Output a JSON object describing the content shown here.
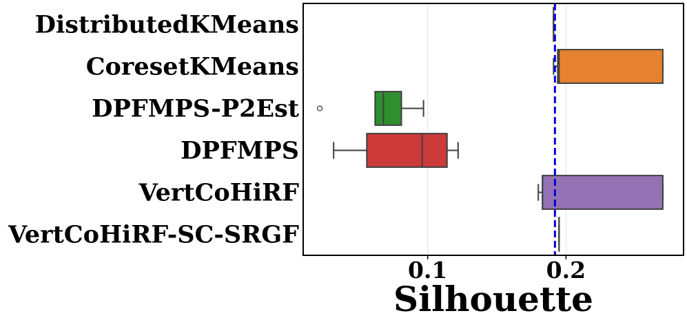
{
  "chart_data": {
    "type": "box",
    "orientation": "horizontal",
    "xlabel": "Silhouette",
    "xlim": [
      0.01,
      0.285
    ],
    "xticks": [
      0.1,
      0.2
    ],
    "xtick_labels": [
      "0.1",
      "0.2"
    ],
    "grid": "vertical",
    "reference_line": {
      "value": 0.192,
      "style": "dashed",
      "color": "#0000dd"
    },
    "categories": [
      "DistributedKMeans",
      "CoresetKMeans",
      "DPFMPS-P2Est",
      "DPFMPS",
      "VertCoHiRF",
      "VertCoHiRF-SC-SRGF"
    ],
    "boxes": [
      {
        "name": "DistributedKMeans",
        "whislo": 0.191,
        "q1": 0.191,
        "med": 0.191,
        "q3": 0.191,
        "whishi": 0.191,
        "fliers": [],
        "color": "#1f77b4"
      },
      {
        "name": "CoresetKMeans",
        "whislo": 0.191,
        "q1": 0.194,
        "med": 0.195,
        "q3": 0.27,
        "whishi": 0.27,
        "fliers": [],
        "color": "#e6812f"
      },
      {
        "name": "DPFMPS-P2Est",
        "whislo": 0.062,
        "q1": 0.062,
        "med": 0.068,
        "q3": 0.081,
        "whishi": 0.097,
        "fliers": [
          0.022
        ],
        "color": "#2f8f2f"
      },
      {
        "name": "DPFMPS",
        "whislo": 0.032,
        "q1": 0.056,
        "med": 0.096,
        "q3": 0.114,
        "whishi": 0.122,
        "fliers": [],
        "color": "#cc3a3a"
      },
      {
        "name": "VertCoHiRF",
        "whislo": 0.18,
        "q1": 0.183,
        "med": 0.183,
        "q3": 0.27,
        "whishi": 0.27,
        "fliers": [],
        "color": "#9473b4"
      },
      {
        "name": "VertCoHiRF-SC-SRGF",
        "whislo": 0.195,
        "q1": 0.195,
        "med": 0.195,
        "q3": 0.195,
        "whishi": 0.195,
        "fliers": [],
        "color": "#8c564b"
      }
    ]
  }
}
